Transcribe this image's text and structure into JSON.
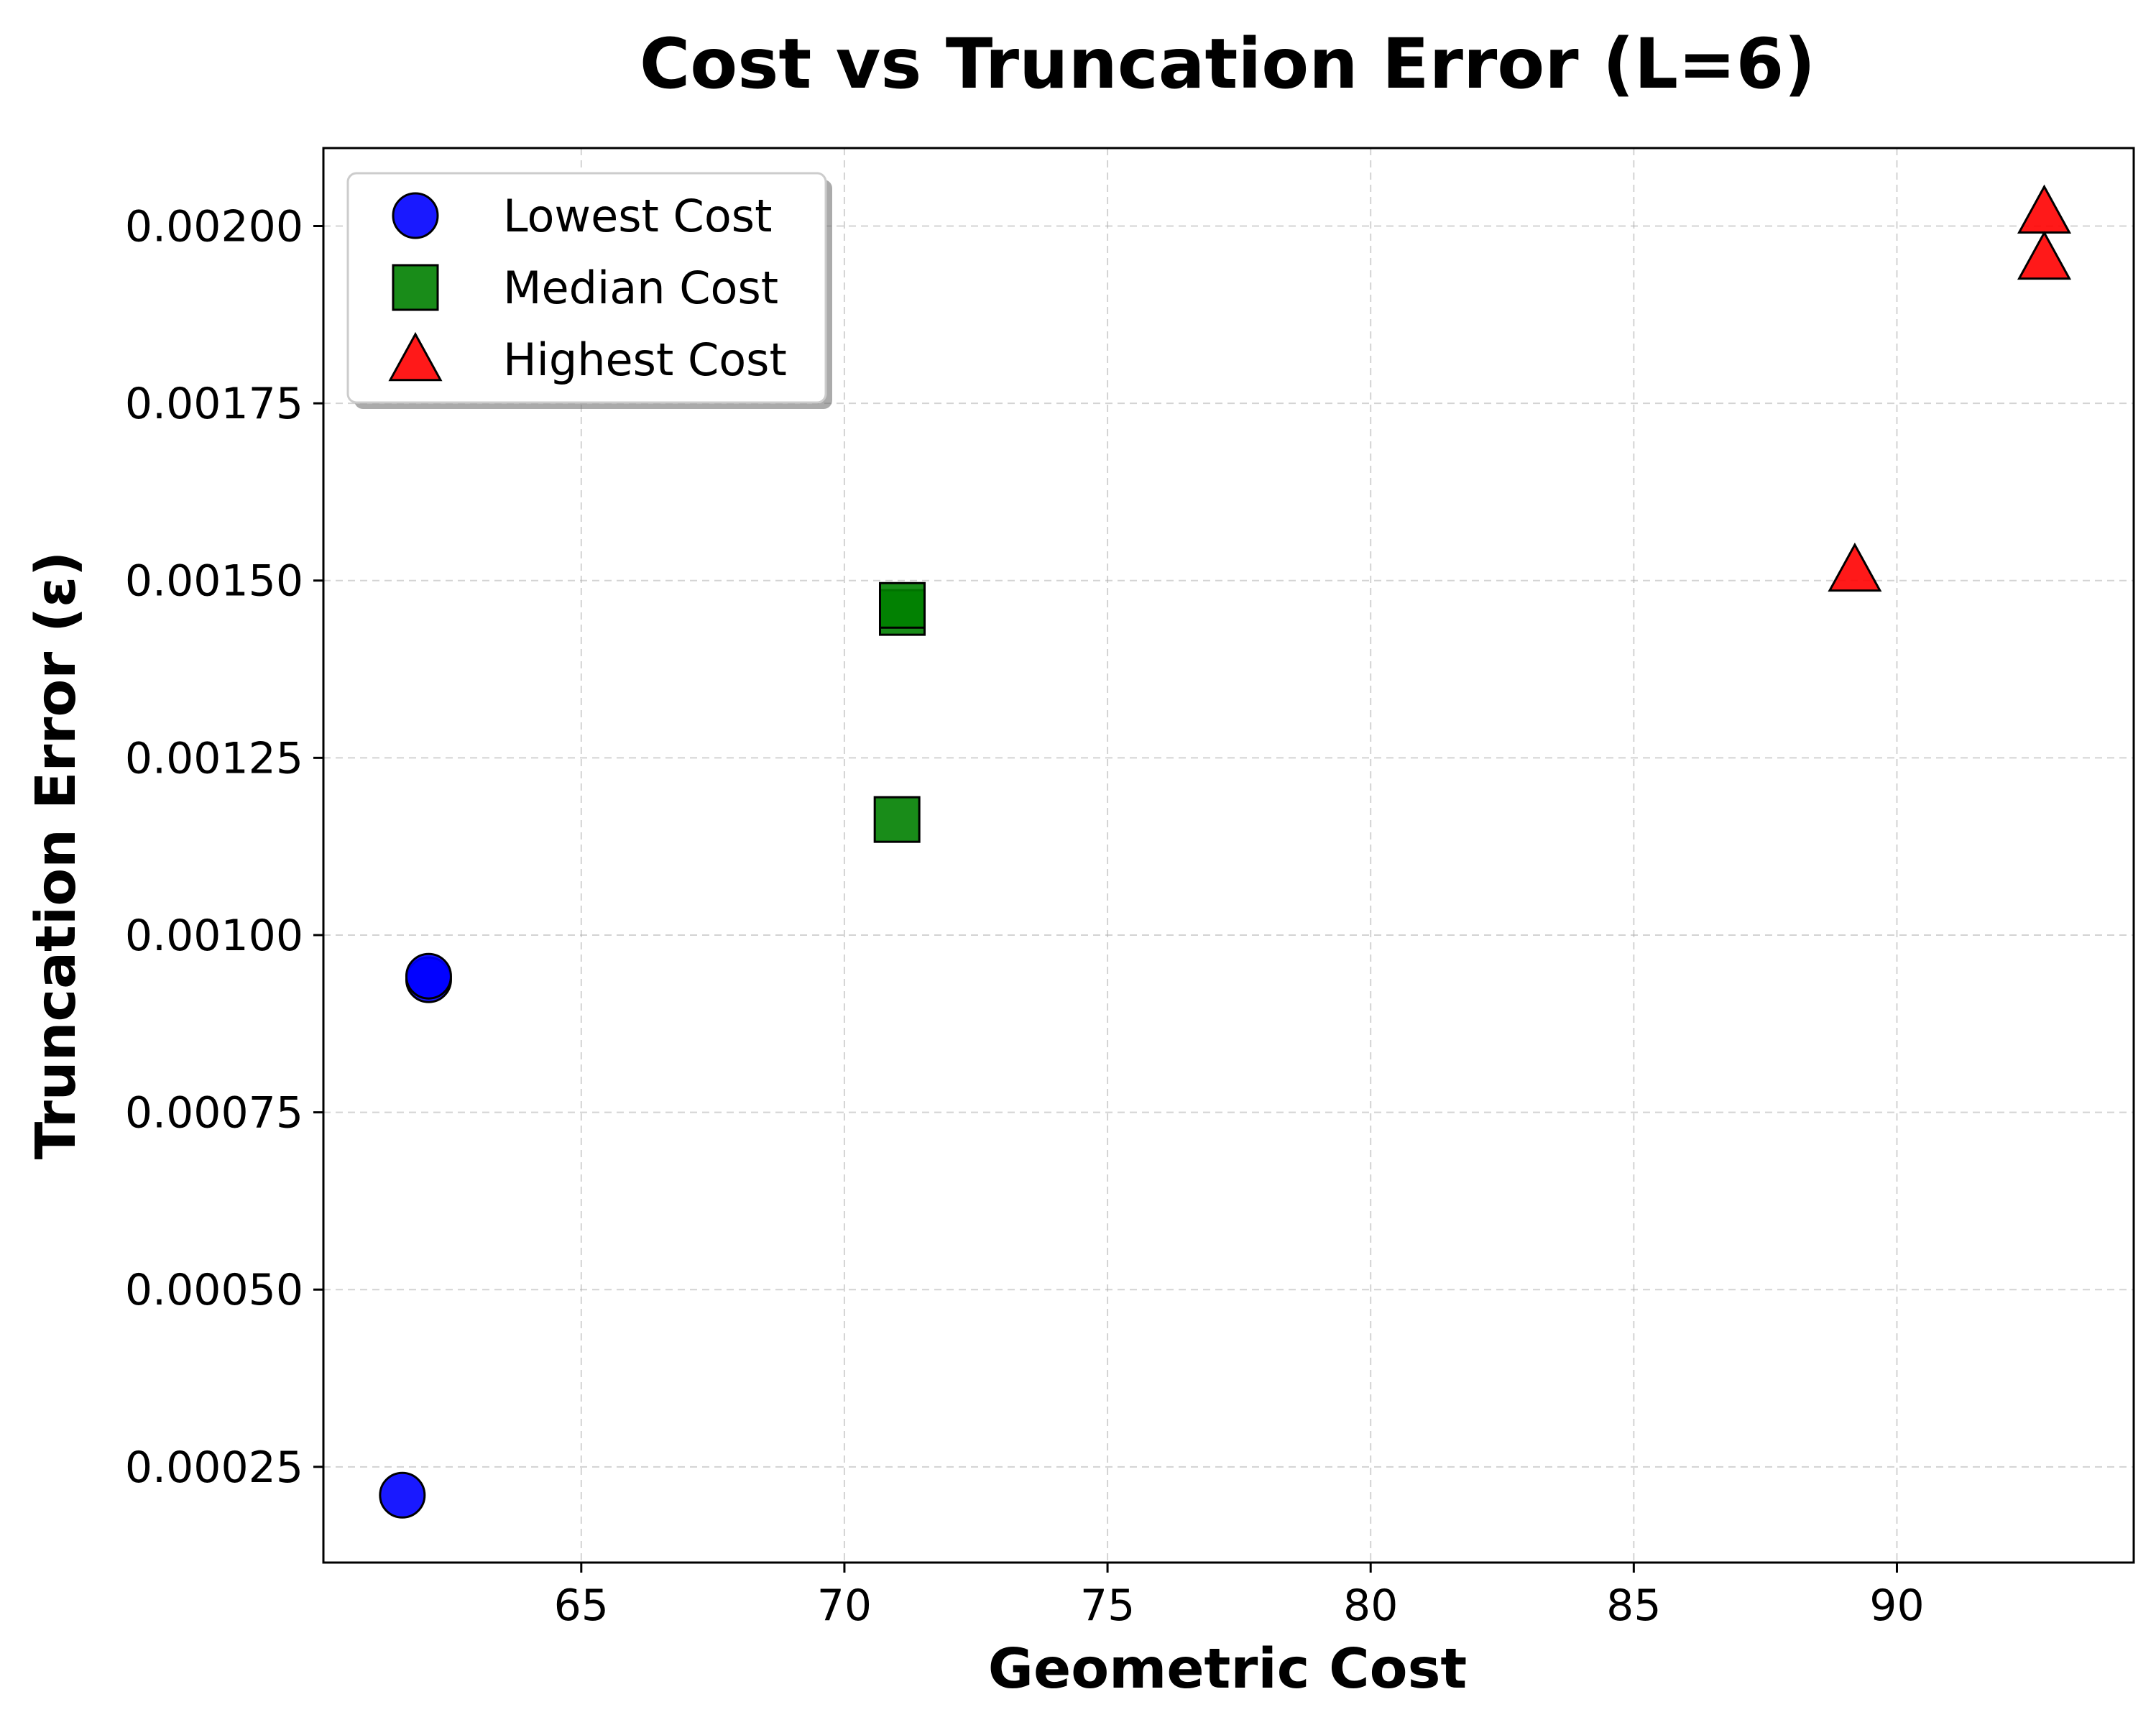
{
  "chart_data": {
    "type": "scatter",
    "title": "Cost vs Truncation Error (L=6)",
    "xlabel": "Geometric Cost",
    "ylabel": "Truncation Error (ε)",
    "xlim": [
      60.1,
      94.5
    ],
    "ylim": [
      0.000115,
      0.00211
    ],
    "xticks": [
      65,
      70,
      75,
      80,
      85,
      90
    ],
    "xtick_labels": [
      "65",
      "70",
      "75",
      "80",
      "85",
      "90"
    ],
    "yticks": [
      0.00025,
      0.0005,
      0.00075,
      0.001,
      0.00125,
      0.0015,
      0.00175,
      0.002
    ],
    "ytick_labels": [
      "0.00025",
      "0.00050",
      "0.00075",
      "0.00100",
      "0.00125",
      "0.00150",
      "0.00175",
      "0.00200"
    ],
    "grid": true,
    "legend_position": "top-left",
    "series": [
      {
        "name": "Lowest Cost",
        "marker": "circle",
        "color": "#0000ff",
        "points": [
          {
            "x": 61.6,
            "y": 0.00021
          },
          {
            "x": 62.1,
            "y": 0.000937
          },
          {
            "x": 62.1,
            "y": 0.000942
          }
        ]
      },
      {
        "name": "Median Cost",
        "marker": "square",
        "color": "#008000",
        "points": [
          {
            "x": 71.0,
            "y": 0.001163
          },
          {
            "x": 71.1,
            "y": 0.001455
          },
          {
            "x": 71.1,
            "y": 0.001465
          }
        ]
      },
      {
        "name": "Highest Cost",
        "marker": "triangle",
        "color": "#ff0000",
        "points": [
          {
            "x": 89.2,
            "y": 0.001515
          },
          {
            "x": 92.8,
            "y": 0.001955
          },
          {
            "x": 92.8,
            "y": 0.00202
          }
        ]
      }
    ]
  }
}
